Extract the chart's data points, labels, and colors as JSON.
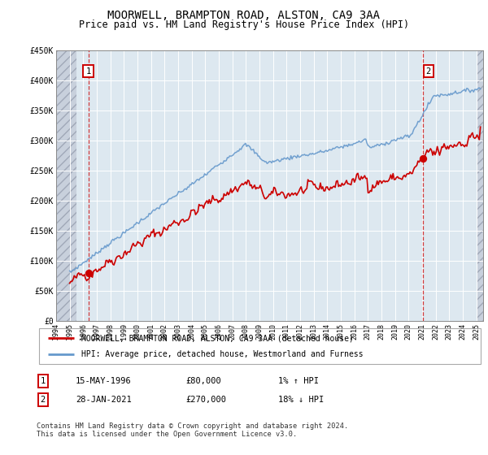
{
  "title": "MOORWELL, BRAMPTON ROAD, ALSTON, CA9 3AA",
  "subtitle": "Price paid vs. HM Land Registry's House Price Index (HPI)",
  "ylim": [
    0,
    450000
  ],
  "yticks": [
    0,
    50000,
    100000,
    150000,
    200000,
    250000,
    300000,
    350000,
    400000,
    450000
  ],
  "ytick_labels": [
    "£0",
    "£50K",
    "£100K",
    "£150K",
    "£200K",
    "£250K",
    "£300K",
    "£350K",
    "£400K",
    "£450K"
  ],
  "xlim_start": 1994.0,
  "xlim_end": 2025.5,
  "hpi_color": "#6699cc",
  "property_color": "#cc0000",
  "transaction1_year": 1996.37,
  "transaction1_price": 80000,
  "transaction2_year": 2021.07,
  "transaction2_price": 270000,
  "legend_property_label": "MOORWELL, BRAMPTON ROAD, ALSTON, CA9 3AA (detached house)",
  "legend_hpi_label": "HPI: Average price, detached house, Westmorland and Furness",
  "table_row1": [
    "1",
    "15-MAY-1996",
    "£80,000",
    "1% ↑ HPI"
  ],
  "table_row2": [
    "2",
    "28-JAN-2021",
    "£270,000",
    "18% ↓ HPI"
  ],
  "footer": "Contains HM Land Registry data © Crown copyright and database right 2024.\nThis data is licensed under the Open Government Licence v3.0.",
  "bg_color": "#ffffff",
  "plot_bg_color": "#dde8f0",
  "hatch_color": "#c8d0dc",
  "grid_color": "#ffffff",
  "title_fontsize": 10,
  "subtitle_fontsize": 8.5
}
